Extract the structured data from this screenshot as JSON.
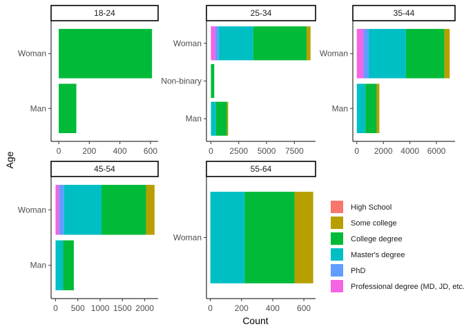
{
  "chart_data": {
    "type": "bar",
    "orientation": "horizontal",
    "stacked": true,
    "xlabel": "Count",
    "ylabel": "Age",
    "grid": false,
    "legend_position": "right",
    "legend": [
      {
        "name": "High School",
        "color": "#F8766D"
      },
      {
        "name": "Some college",
        "color": "#B79F00"
      },
      {
        "name": "College degree",
        "color": "#00BA38"
      },
      {
        "name": "Master's degree",
        "color": "#00BFC4"
      },
      {
        "name": "PhD",
        "color": "#619CFF"
      },
      {
        "name": "Professional degree (MD, JD, etc.)",
        "color": "#F564E3"
      }
    ],
    "panels": [
      {
        "strip": "18-24",
        "xlim": [
          -50,
          650
        ],
        "xticks": [
          0,
          200,
          400,
          600
        ],
        "categories": [
          "Woman",
          "Man"
        ],
        "bars": [
          {
            "category": "Woman",
            "segments": {
              "College degree": 610
            }
          },
          {
            "category": "Man",
            "segments": {
              "College degree": 115
            }
          }
        ]
      },
      {
        "strip": "25-34",
        "xlim": [
          -400,
          9400
        ],
        "xticks": [
          0,
          2500,
          5000,
          7500
        ],
        "categories": [
          "Woman",
          "Non-binary",
          "Man"
        ],
        "bars": [
          {
            "category": "Woman",
            "segments": {
              "Professional degree (MD, JD, etc.)": 400,
              "PhD": 300,
              "Master's degree": 3100,
              "College degree": 4800,
              "Some college": 350
            }
          },
          {
            "category": "Non-binary",
            "segments": {
              "College degree": 300
            }
          },
          {
            "category": "Man",
            "segments": {
              "Master's degree": 450,
              "College degree": 1000,
              "Some college": 100
            }
          }
        ]
      },
      {
        "strip": "35-44",
        "xlim": [
          -300,
          7400
        ],
        "xticks": [
          0,
          2000,
          4000,
          6000
        ],
        "categories": [
          "Woman",
          "Man"
        ],
        "bars": [
          {
            "category": "Woman",
            "segments": {
              "Professional degree (MD, JD, etc.)": 500,
              "PhD": 400,
              "Master's degree": 2800,
              "College degree": 2900,
              "Some college": 400
            }
          },
          {
            "category": "Man",
            "segments": {
              "Master's degree": 650,
              "College degree": 850,
              "Some college": 200
            }
          }
        ]
      },
      {
        "strip": "45-54",
        "xlim": [
          -100,
          2300
        ],
        "xticks": [
          0,
          500,
          1000,
          1500,
          2000
        ],
        "categories": [
          "Woman",
          "Man"
        ],
        "bars": [
          {
            "category": "Woman",
            "segments": {
              "Professional degree (MD, JD, etc.)": 80,
              "PhD": 110,
              "Master's degree": 840,
              "College degree": 1000,
              "Some college": 190
            }
          },
          {
            "category": "Man",
            "segments": {
              "Master's degree": 170,
              "College degree": 240
            }
          }
        ]
      },
      {
        "strip": "55-64",
        "xlim": [
          -25,
          675
        ],
        "xticks": [
          0,
          200,
          400,
          600
        ],
        "categories": [
          "Woman"
        ],
        "bars": [
          {
            "category": "Woman",
            "segments": {
              "Master's degree": 220,
              "College degree": 320,
              "Some college": 120
            }
          }
        ]
      }
    ]
  }
}
